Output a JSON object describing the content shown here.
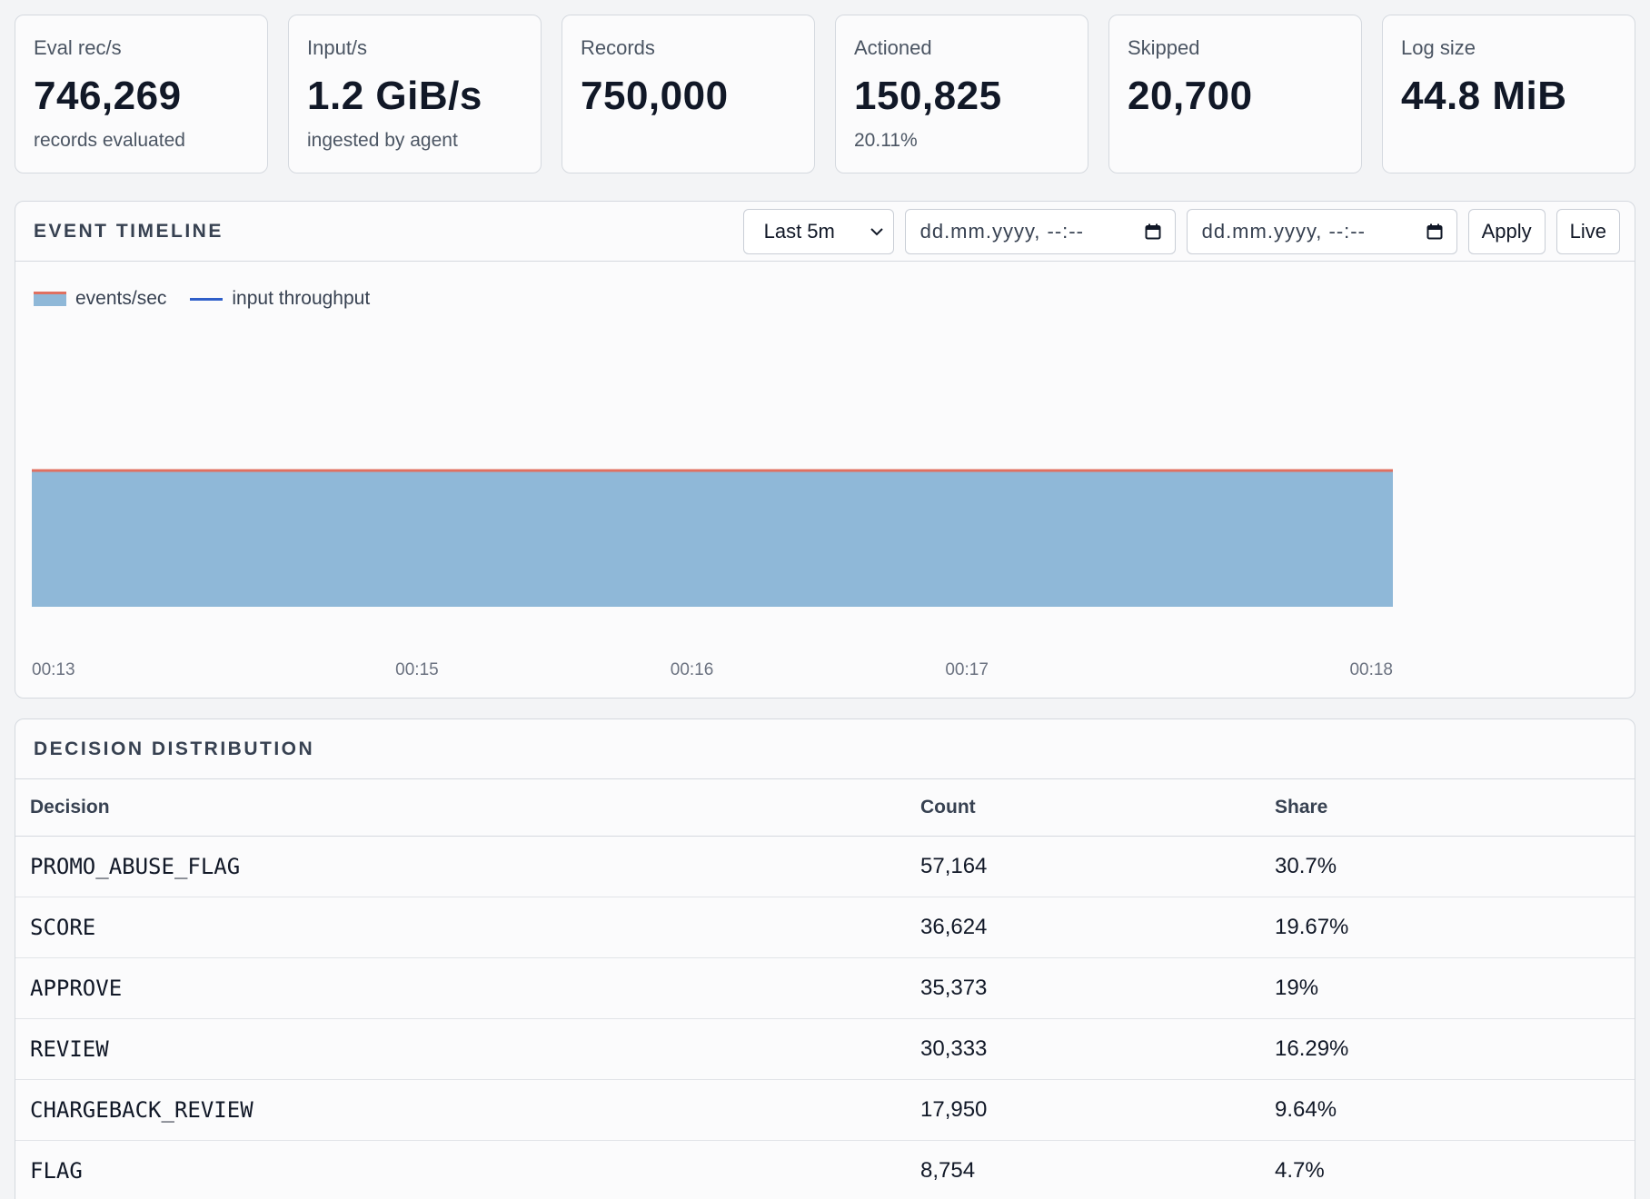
{
  "stats": [
    {
      "label": "Eval rec/s",
      "value": "746,269",
      "sub": "records evaluated"
    },
    {
      "label": "Input/s",
      "value": "1.2 GiB/s",
      "sub": "ingested by agent"
    },
    {
      "label": "Records",
      "value": "750,000",
      "sub": ""
    },
    {
      "label": "Actioned",
      "value": "150,825",
      "sub": "20.11%"
    },
    {
      "label": "Skipped",
      "value": "20,700",
      "sub": ""
    },
    {
      "label": "Log size",
      "value": "44.8 MiB",
      "sub": ""
    }
  ],
  "timeline": {
    "title": "EVENT TIMELINE",
    "range_select": "Last 5m",
    "date_from_placeholder": "dd.mm.yyyy, --:--",
    "date_to_placeholder": "dd.mm.yyyy, --:--",
    "apply_label": "Apply",
    "live_label": "Live",
    "legend": [
      {
        "name": "events/sec",
        "color": "#8fb8d8",
        "edge": "#e07060"
      },
      {
        "name": "input throughput",
        "color": "#2f5fc9"
      }
    ]
  },
  "chart_data": {
    "type": "area",
    "x_ticks": [
      "00:13",
      "00:15",
      "00:16",
      "00:17",
      "00:18"
    ],
    "series": [
      {
        "name": "events/sec",
        "values": [
          1,
          1,
          1,
          1,
          1
        ]
      }
    ],
    "ylim": [
      0,
      2
    ],
    "grid": false,
    "legend_position": "top-left"
  },
  "distribution": {
    "title": "DECISION DISTRIBUTION",
    "columns": [
      "Decision",
      "Count",
      "Share"
    ],
    "rows": [
      [
        "PROMO_ABUSE_FLAG",
        "57,164",
        "30.7%"
      ],
      [
        "SCORE",
        "36,624",
        "19.67%"
      ],
      [
        "APPROVE",
        "35,373",
        "19%"
      ],
      [
        "REVIEW",
        "30,333",
        "16.29%"
      ],
      [
        "CHARGEBACK_REVIEW",
        "17,950",
        "9.64%"
      ],
      [
        "FLAG",
        "8,754",
        "4.7%"
      ]
    ]
  }
}
